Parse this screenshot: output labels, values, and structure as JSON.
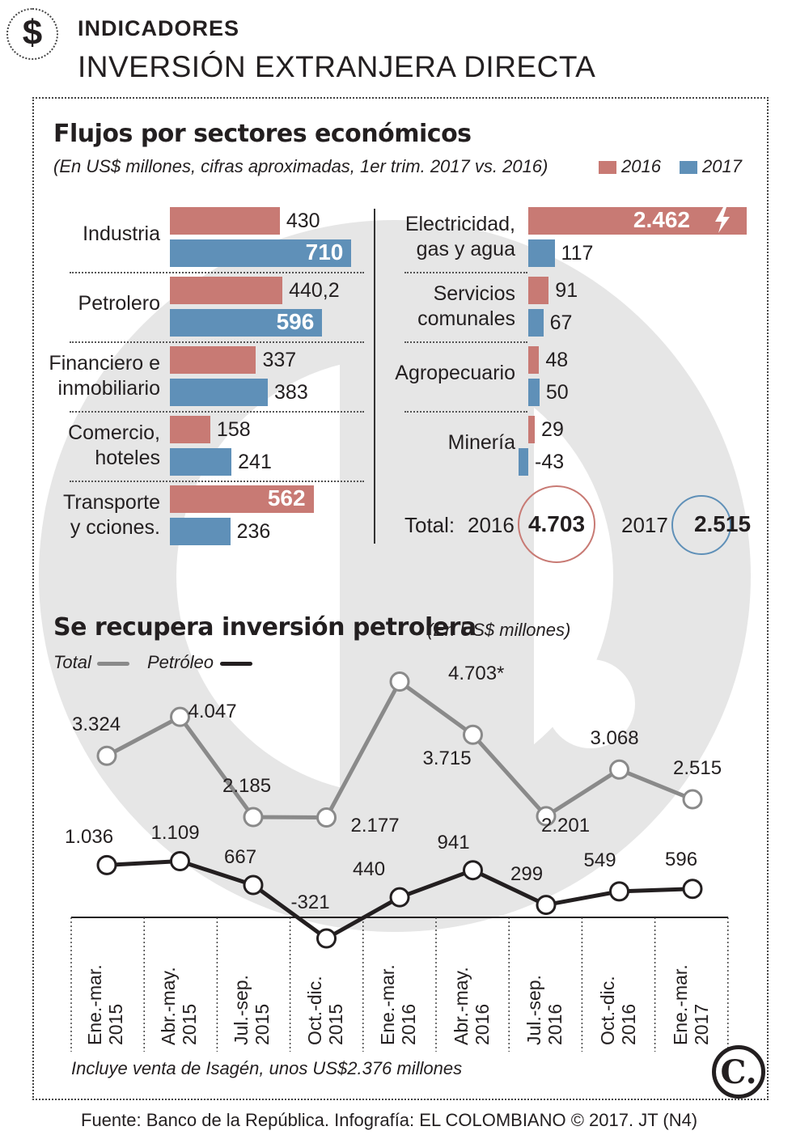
{
  "header": {
    "kicker": "INDICADORES",
    "title": "INVERSIÓN EXTRANJERA DIRECTA",
    "icon": "dollar-icon"
  },
  "sectors": {
    "title": "Flujos por sectores económicos",
    "subtitle": "(En US$ millones, cifras aproximadas, 1er trim. 2017 vs. 2016)",
    "legend": [
      "2016",
      "2017"
    ],
    "total_label": "Total:",
    "total_2016_year": "2016",
    "total_2016_value": "4.703",
    "total_2017_year": "2017",
    "total_2017_value": "2.515"
  },
  "petroleo": {
    "title": "Se recupera inversión petrolera",
    "unit": "(En US$ millones)",
    "legend_total": "Total",
    "legend_petroleo": "Petróleo",
    "footnote": "Incluye venta de Isagén, unos US$2.376 millones"
  },
  "footer": {
    "source": "Fuente: Banco de la República. Infografía: EL COLOMBIANO © 2017. JT (N4)",
    "logo": "C."
  },
  "chart_data": [
    {
      "type": "bar",
      "title": "Flujos por sectores económicos",
      "categories": [
        "Industria",
        "Petrolero",
        "Financiero e inmobiliario",
        "Comercio, hoteles",
        "Transporte y cciones.",
        "Electricidad, gas y agua",
        "Servicios comunales",
        "Agropecuario",
        "Minería"
      ],
      "category_lines": [
        [
          "Industria"
        ],
        [
          "Petrolero"
        ],
        [
          "Financiero e",
          "inmobiliario"
        ],
        [
          "Comercio,",
          "hoteles"
        ],
        [
          "Transporte",
          "y cciones."
        ],
        [
          "Electricidad,",
          "gas y agua"
        ],
        [
          "Servicios",
          "comunales"
        ],
        [
          "Agropecuario"
        ],
        [
          "Minería"
        ]
      ],
      "series": [
        {
          "name": "2016",
          "color": "#c87a74",
          "values": [
            430,
            440.2,
            337,
            158,
            562,
            2462,
            91,
            48,
            29
          ],
          "labels": [
            "430",
            "440,2",
            "337",
            "158",
            "562",
            "2.462",
            "91",
            "48",
            "29"
          ]
        },
        {
          "name": "2017",
          "color": "#5f90b8",
          "values": [
            710,
            596,
            383,
            241,
            236,
            117,
            67,
            50,
            -43
          ],
          "labels": [
            "710",
            "596",
            "383",
            "241",
            "236",
            "117",
            "67",
            "50",
            "-43"
          ]
        }
      ],
      "totals": {
        "2016": 4703,
        "2017": 2515
      }
    },
    {
      "type": "line",
      "title": "Se recupera inversión petrolera",
      "x": [
        "Ene.-mar. 2015",
        "Abr.-may. 2015",
        "Jul.-sep. 2015",
        "Oct.-dic. 2015",
        "Ene.-mar. 2016",
        "Abr.-may. 2016",
        "Jul.-sep. 2016",
        "Oct.-dic. 2016",
        "Ene.-mar. 2017"
      ],
      "x_lines": [
        [
          "Ene.-mar.",
          "2015"
        ],
        [
          "Abr.-may.",
          "2015"
        ],
        [
          "Jul.-sep.",
          "2015"
        ],
        [
          "Oct.-dic.",
          "2015"
        ],
        [
          "Ene.-mar.",
          "2016"
        ],
        [
          "Abr.-may.",
          "2016"
        ],
        [
          "Jul.-sep.",
          "2016"
        ],
        [
          "Oct.-dic.",
          "2016"
        ],
        [
          "Ene.-mar.",
          "2017"
        ]
      ],
      "series": [
        {
          "name": "Total",
          "color": "#8a8a8a",
          "values": [
            3324,
            4047,
            2185,
            2177,
            4703,
            3715,
            2201,
            3068,
            2515
          ],
          "labels": [
            "3.324",
            "4.047",
            "2.185",
            "2.177",
            "4.703*",
            "3.715",
            "2.201",
            "3.068",
            "2.515"
          ]
        },
        {
          "name": "Petróleo",
          "color": "#231f20",
          "values": [
            1036,
            1109,
            667,
            -321,
            440,
            941,
            299,
            549,
            596
          ],
          "labels": [
            "1.036",
            "1.109",
            "667",
            "-321",
            "440",
            "941",
            "299",
            "549",
            "596"
          ]
        }
      ]
    }
  ]
}
